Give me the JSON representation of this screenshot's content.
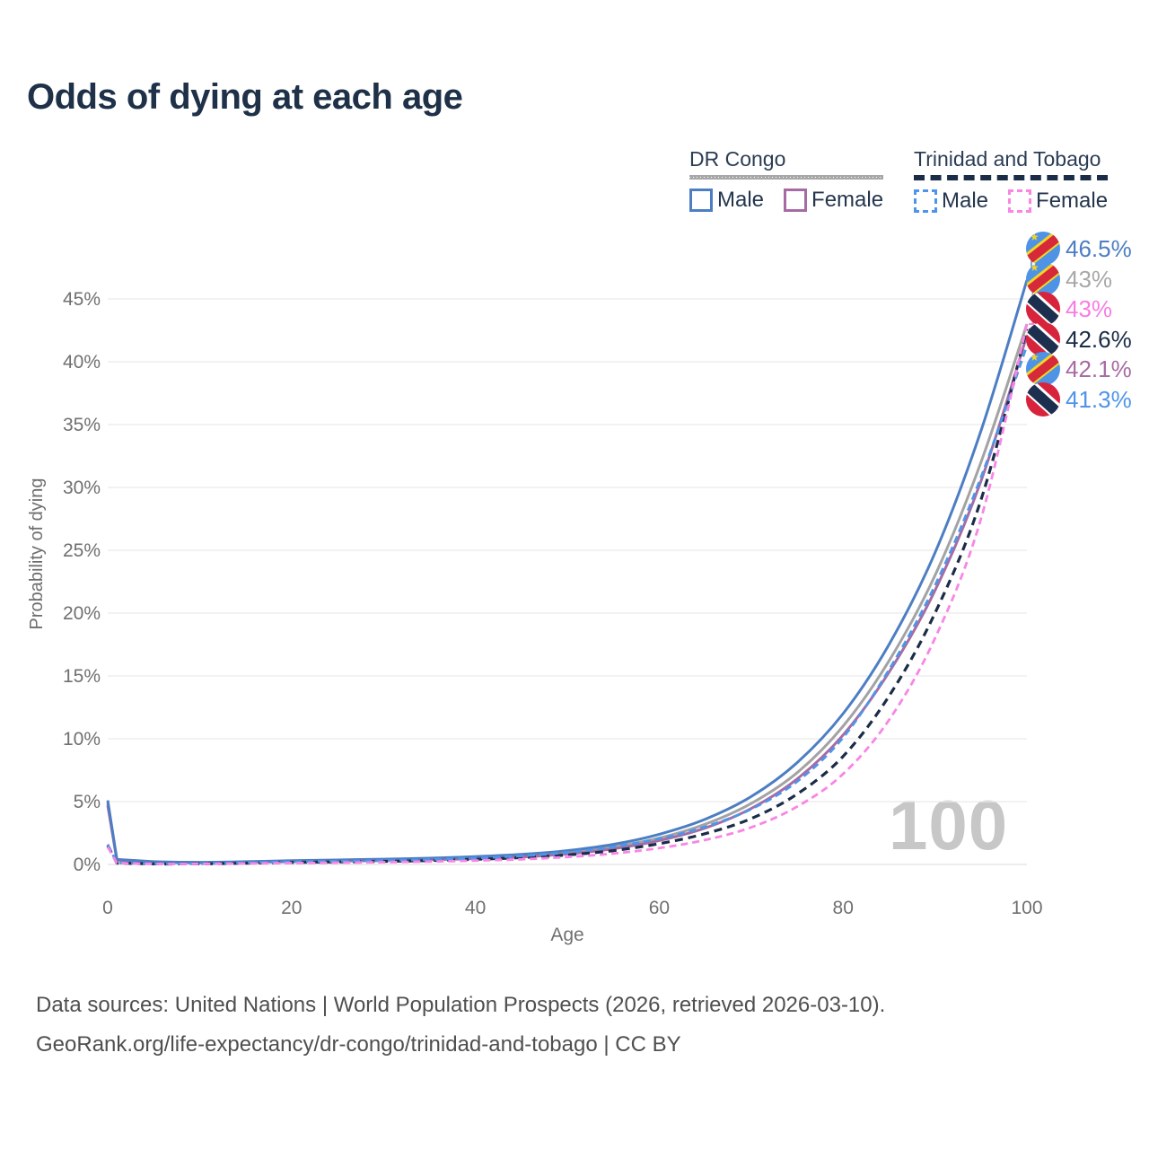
{
  "title": "Odds of dying at each age",
  "watermark": "100",
  "legend": {
    "groups": [
      {
        "label": "DR Congo",
        "style": "solid",
        "items": [
          {
            "label": "Male",
            "series": "drc-male"
          },
          {
            "label": "Female",
            "series": "drc-female"
          }
        ]
      },
      {
        "label": "Trinidad and Tobago",
        "style": "dashed",
        "items": [
          {
            "label": "Male",
            "series": "tt-male"
          },
          {
            "label": "Female",
            "series": "tt-female"
          }
        ]
      }
    ]
  },
  "footer": {
    "line1": "Data sources: United Nations | World Population Prospects (2026, retrieved 2026-03-10).",
    "line2": "GeoRank.org/life-expectancy/dr-congo/trinidad-and-tobago | CC BY"
  },
  "chart_data": {
    "type": "line",
    "title": "Odds of dying at each age",
    "xlabel": "Age",
    "ylabel": "Probability of dying",
    "x_ticks": [
      0,
      20,
      40,
      60,
      80,
      100
    ],
    "y_tick_values": [
      0,
      5,
      10,
      15,
      20,
      25,
      30,
      35,
      40,
      45
    ],
    "y_tick_labels": [
      "0%",
      "5%",
      "10%",
      "15%",
      "20%",
      "25%",
      "30%",
      "35%",
      "40%",
      "45%"
    ],
    "xlim": [
      0,
      100
    ],
    "ylim": [
      0,
      47
    ],
    "grid": "horizontal",
    "x": [
      0,
      1,
      5,
      10,
      15,
      20,
      25,
      30,
      35,
      40,
      45,
      50,
      55,
      60,
      65,
      70,
      75,
      80,
      85,
      90,
      95,
      100
    ],
    "series": [
      {
        "id": "drc-all",
        "name": "DR Congo (both sexes)",
        "country": "DR Congo",
        "sex": "all",
        "color": "#a3a3a3",
        "dash": null,
        "width": 3,
        "values": [
          4.9,
          0.37,
          0.2,
          0.15,
          0.19,
          0.26,
          0.31,
          0.36,
          0.43,
          0.53,
          0.68,
          0.95,
          1.4,
          2.1,
          3.2,
          4.85,
          7.3,
          11.0,
          16.2,
          23.0,
          32.0,
          43.0
        ]
      },
      {
        "id": "drc-female",
        "name": "DR Congo Female",
        "country": "DR Congo",
        "sex": "female",
        "color": "#a76ba3",
        "dash": null,
        "width": 3,
        "values": [
          4.7,
          0.34,
          0.18,
          0.14,
          0.17,
          0.22,
          0.27,
          0.31,
          0.37,
          0.46,
          0.59,
          0.83,
          1.25,
          1.9,
          2.9,
          4.45,
          6.8,
          10.3,
          15.3,
          21.8,
          30.5,
          42.1
        ]
      },
      {
        "id": "drc-male",
        "name": "DR Congo Male",
        "country": "DR Congo",
        "sex": "male",
        "color": "#4d7ec3",
        "dash": null,
        "width": 3,
        "values": [
          5.1,
          0.4,
          0.22,
          0.17,
          0.22,
          0.3,
          0.36,
          0.42,
          0.5,
          0.62,
          0.8,
          1.1,
          1.6,
          2.4,
          3.6,
          5.4,
          8.1,
          12.0,
          17.5,
          24.8,
          34.5,
          46.5
        ]
      },
      {
        "id": "tt-all",
        "name": "Trinidad and Tobago (both sexes)",
        "country": "Trinidad and Tobago",
        "sex": "all",
        "color": "#1b2c47",
        "dash": "9 6",
        "width": 3.2,
        "values": [
          1.5,
          0.11,
          0.04,
          0.05,
          0.1,
          0.16,
          0.2,
          0.24,
          0.31,
          0.41,
          0.54,
          0.76,
          1.1,
          1.65,
          2.45,
          3.65,
          5.6,
          8.6,
          13.4,
          20.0,
          29.0,
          42.6
        ]
      },
      {
        "id": "tt-male",
        "name": "Trinidad and Tobago Male",
        "country": "Trinidad and Tobago",
        "sex": "male",
        "color": "#4e95ea",
        "dash": "8 5",
        "width": 2.8,
        "values": [
          1.6,
          0.12,
          0.05,
          0.06,
          0.13,
          0.21,
          0.26,
          0.31,
          0.39,
          0.51,
          0.68,
          0.95,
          1.4,
          2.05,
          3.0,
          4.4,
          6.6,
          10.1,
          15.5,
          22.2,
          30.8,
          41.3
        ]
      },
      {
        "id": "tt-female",
        "name": "Trinidad and Tobago Female",
        "country": "Trinidad and Tobago",
        "sex": "female",
        "color": "#f985e5",
        "dash": "8 5",
        "width": 2.8,
        "values": [
          1.4,
          0.1,
          0.04,
          0.04,
          0.07,
          0.11,
          0.14,
          0.18,
          0.23,
          0.31,
          0.41,
          0.59,
          0.87,
          1.3,
          1.95,
          2.95,
          4.6,
          7.2,
          11.5,
          18.0,
          27.5,
          43.0
        ]
      }
    ],
    "end_labels": [
      {
        "series": "drc-male",
        "flag": "dr-congo",
        "text": "46.5%",
        "color": "#4d7ec3"
      },
      {
        "series": "drc-all",
        "flag": "dr-congo",
        "text": "43%",
        "color": "#a8a8a8"
      },
      {
        "series": "tt-female",
        "flag": "trinidad-and-tobago",
        "text": "43%",
        "color": "#f97ce4"
      },
      {
        "series": "tt-all",
        "flag": "trinidad-and-tobago",
        "text": "42.6%",
        "color": "#1b2c47"
      },
      {
        "series": "drc-female",
        "flag": "dr-congo",
        "text": "42.1%",
        "color": "#a76ba3"
      },
      {
        "series": "tt-male",
        "flag": "trinidad-and-tobago",
        "text": "41.3%",
        "color": "#4e95ea"
      }
    ],
    "legend_position": "top-right",
    "watermark": "100"
  }
}
